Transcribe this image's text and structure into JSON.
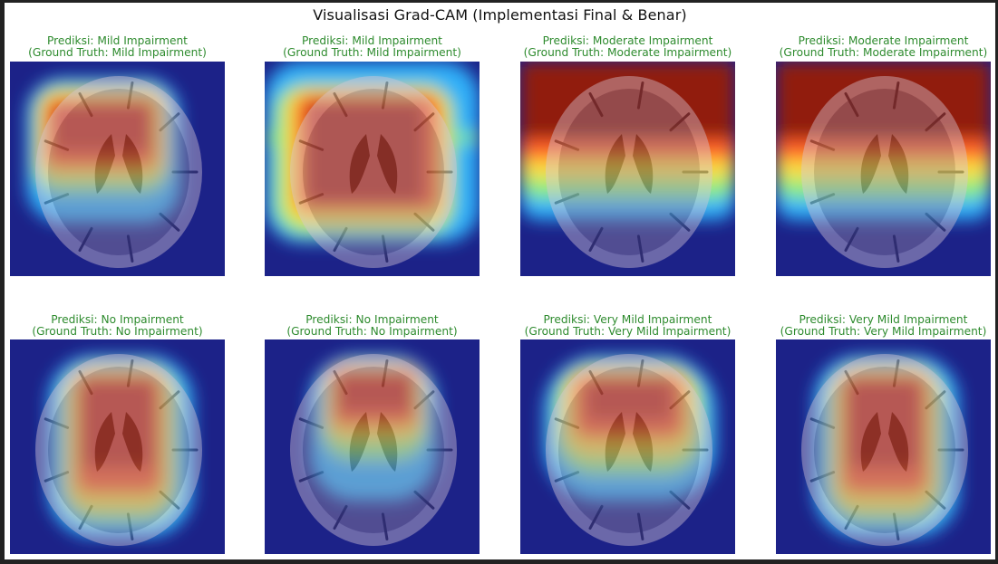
{
  "figure": {
    "title": "Visualisasi Grad-CAM (Implementasi Final & Benar)"
  },
  "colors": {
    "caption_correct": "#2e8b2e",
    "heat_low": "#1c2288",
    "heat_high": "#8b1a0f"
  },
  "panels": [
    {
      "prediction": "Prediksi: Mild Impairment",
      "ground_truth": "(Ground Truth: Mild Impairment)",
      "heatmap": "hot-upper-left-block"
    },
    {
      "prediction": "Prediksi: Mild Impairment",
      "ground_truth": "(Ground Truth: Mild Impairment)",
      "heatmap": "hot-center-wide-block"
    },
    {
      "prediction": "Prediksi: Moderate Impairment",
      "ground_truth": "(Ground Truth: Moderate Impairment)",
      "heatmap": "hot-top-band"
    },
    {
      "prediction": "Prediksi: Moderate Impairment",
      "ground_truth": "(Ground Truth: Moderate Impairment)",
      "heatmap": "hot-top-band"
    },
    {
      "prediction": "Prediksi: No Impairment",
      "ground_truth": "(Ground Truth: No Impairment)",
      "heatmap": "hot-center-tall"
    },
    {
      "prediction": "Prediksi: No Impairment",
      "ground_truth": "(Ground Truth: No Impairment)",
      "heatmap": "hot-upper-narrow"
    },
    {
      "prediction": "Prediksi: Very Mild Impairment",
      "ground_truth": "(Ground Truth: Very Mild Impairment)",
      "heatmap": "hot-upper-spread"
    },
    {
      "prediction": "Prediksi: Very Mild Impairment",
      "ground_truth": "(Ground Truth: Very Mild Impairment)",
      "heatmap": "hot-center-tall"
    }
  ]
}
